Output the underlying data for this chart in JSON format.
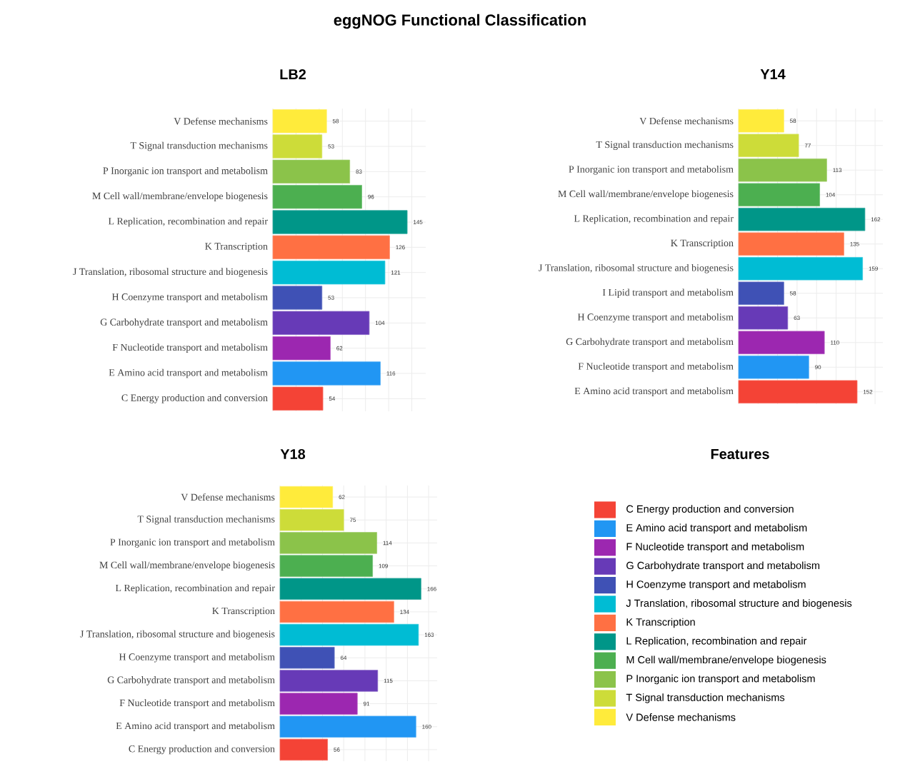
{
  "chart_data": [
    {
      "type": "other",
      "title": "eggNOG Functional Classification"
    },
    {
      "type": "bar",
      "orientation": "horizontal",
      "title": "LB2",
      "data_labels": true,
      "grid": true,
      "tick_labels": "y",
      "categories": [
        "V Defense mechanisms",
        "T Signal transduction mechanisms",
        "P Inorganic ion transport and metabolism",
        "M Cell wall/membrane/envelope biogenesis",
        "L Replication, recombination and repair",
        "K Transcription",
        "J Translation, ribosomal structure and biogenesis",
        "H Coenzyme transport and metabolism",
        "G Carbohydrate transport and metabolism",
        "F Nucleotide transport and metabolism",
        "E Amino acid transport and metabolism",
        "C Energy production and conversion"
      ],
      "values": [
        58,
        53,
        83,
        96,
        145,
        126,
        121,
        53,
        104,
        62,
        116,
        54
      ],
      "colors": [
        "#ffeb3b",
        "#cddc39",
        "#8bc34a",
        "#4caf50",
        "#009688",
        "#ff7043",
        "#00bcd4",
        "#3f51b5",
        "#673ab7",
        "#9c27b0",
        "#2196f3",
        "#f44336"
      ],
      "xlim": [
        0,
        165
      ],
      "xticks": [
        {
          "value": 0,
          "label": null
        },
        {
          "value": 25,
          "label": null
        },
        {
          "value": 50,
          "label": null
        },
        {
          "value": 75,
          "label": null
        },
        {
          "value": 100,
          "label": null
        },
        {
          "value": 125,
          "label": null
        },
        {
          "value": 150,
          "label": null
        }
      ]
    },
    {
      "type": "bar",
      "orientation": "horizontal",
      "title": "Y14",
      "data_labels": true,
      "grid": true,
      "tick_labels": "y",
      "categories": [
        "V Defense mechanisms",
        "T Signal transduction mechanisms",
        "P Inorganic ion transport and metabolism",
        "M Cell wall/membrane/envelope biogenesis",
        "L Replication, recombination and repair",
        "K Transcription",
        "J Translation, ribosomal structure and biogenesis",
        "I Lipid transport and metabolism",
        "H Coenzyme transport and metabolism",
        "G Carbohydrate transport and metabolism",
        "F Nucleotide transport and metabolism",
        "E Amino acid transport and metabolism"
      ],
      "values": [
        58,
        77,
        113,
        104,
        162,
        135,
        159,
        58,
        63,
        110,
        90,
        152
      ],
      "colors": [
        "#ffeb3b",
        "#cddc39",
        "#8bc34a",
        "#4caf50",
        "#009688",
        "#ff7043",
        "#00bcd4",
        "#3f51b5",
        "#673ab7",
        "#9c27b0",
        "#2196f3",
        "#f44336"
      ],
      "xlim": [
        0,
        185
      ],
      "xticks": [
        {
          "value": 0,
          "label": null
        },
        {
          "value": 25,
          "label": null
        },
        {
          "value": 50,
          "label": null
        },
        {
          "value": 75,
          "label": null
        },
        {
          "value": 100,
          "label": null
        },
        {
          "value": 125,
          "label": null
        },
        {
          "value": 150,
          "label": null
        },
        {
          "value": 175,
          "label": null
        }
      ]
    },
    {
      "type": "bar",
      "orientation": "horizontal",
      "title": "Y18",
      "data_labels": true,
      "grid": true,
      "tick_labels": "y",
      "categories": [
        "V Defense mechanisms",
        "T Signal transduction mechanisms",
        "P Inorganic ion transport and metabolism",
        "M Cell wall/membrane/envelope biogenesis",
        "L Replication, recombination and repair",
        "K Transcription",
        "J Translation, ribosomal structure and biogenesis",
        "H Coenzyme transport and metabolism",
        "G Carbohydrate transport and metabolism",
        "F Nucleotide transport and metabolism",
        "E Amino acid transport and metabolism",
        "C Energy production and conversion"
      ],
      "values": [
        62,
        75,
        114,
        109,
        166,
        134,
        163,
        64,
        115,
        91,
        160,
        56
      ],
      "colors": [
        "#ffeb3b",
        "#cddc39",
        "#8bc34a",
        "#4caf50",
        "#009688",
        "#ff7043",
        "#00bcd4",
        "#3f51b5",
        "#673ab7",
        "#9c27b0",
        "#2196f3",
        "#f44336"
      ],
      "xlim": [
        0,
        185
      ],
      "xticks": [
        {
          "value": 0,
          "label": null
        },
        {
          "value": 25,
          "label": null
        },
        {
          "value": 50,
          "label": null
        },
        {
          "value": 75,
          "label": null
        },
        {
          "value": 100,
          "label": null
        },
        {
          "value": 125,
          "label": null
        },
        {
          "value": 150,
          "label": null
        },
        {
          "value": 175,
          "label": null
        }
      ]
    },
    {
      "type": "other",
      "title": "Features",
      "categories": [
        "C Energy production and conversion",
        "E Amino acid transport and metabolism",
        "F Nucleotide transport and metabolism",
        "G Carbohydrate transport and metabolism",
        "H Coenzyme transport and metabolism",
        "J Translation, ribosomal structure and biogenesis",
        "K Transcription",
        "L Replication, recombination and repair",
        "M Cell wall/membrane/envelope biogenesis",
        "P Inorganic ion transport and metabolism",
        "T Signal transduction mechanisms",
        "V Defense mechanisms"
      ],
      "colors": [
        "#f44336",
        "#2196f3",
        "#9c27b0",
        "#673ab7",
        "#3f51b5",
        "#00bcd4",
        "#ff7043",
        "#009688",
        "#4caf50",
        "#8bc34a",
        "#cddc39",
        "#ffeb3b"
      ]
    }
  ]
}
